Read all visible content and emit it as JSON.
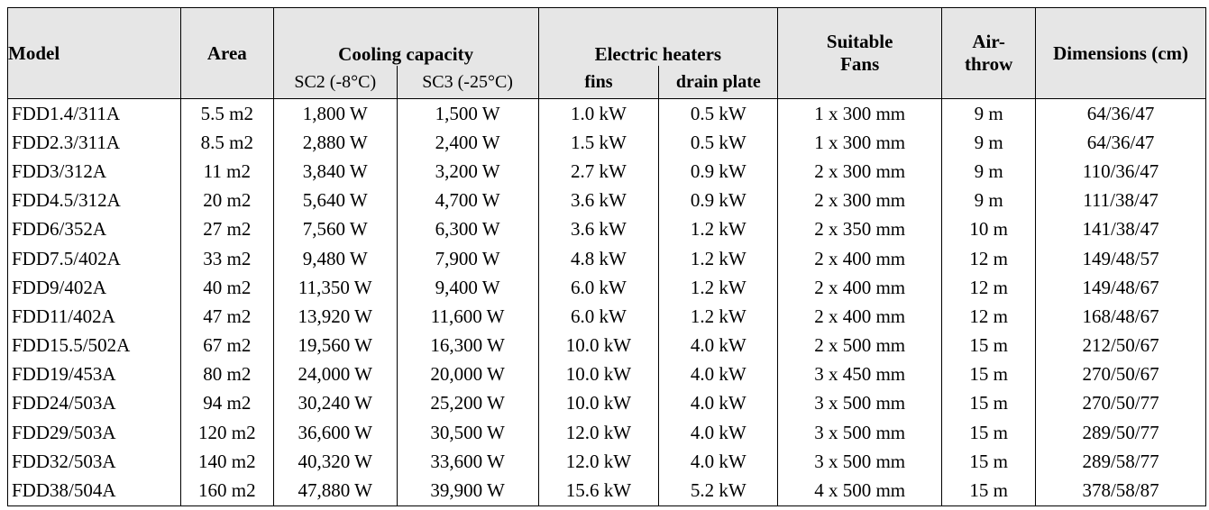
{
  "headers": {
    "model": "Model",
    "area": "Area",
    "cooling_capacity": "Cooling capacity",
    "sc2": "SC2 (-8°C)",
    "sc3": "SC3 (-25°C)",
    "electric_heaters": "Electric heaters",
    "fins": "fins",
    "drain_plate": "drain plate",
    "suitable_fans": "Suitable Fans",
    "air_throw": "Air-throw",
    "dimensions": "Dimensions (cm)"
  },
  "rows": [
    {
      "model": "FDD1.4/311A",
      "area": "5.5 m2",
      "sc2": "1,800 W",
      "sc3": "1,500 W",
      "fins": "1.0 kW",
      "drain": "0.5 kW",
      "fans": "1 x 300 mm",
      "air": "9 m",
      "dim": "64/36/47"
    },
    {
      "model": "FDD2.3/311A",
      "area": "8.5 m2",
      "sc2": "2,880 W",
      "sc3": "2,400 W",
      "fins": "1.5 kW",
      "drain": "0.5 kW",
      "fans": "1 x 300 mm",
      "air": "9 m",
      "dim": "64/36/47"
    },
    {
      "model": "FDD3/312A",
      "area": "11 m2",
      "sc2": "3,840 W",
      "sc3": "3,200 W",
      "fins": "2.7 kW",
      "drain": "0.9 kW",
      "fans": "2 x 300 mm",
      "air": "9 m",
      "dim": "110/36/47"
    },
    {
      "model": "FDD4.5/312A",
      "area": "20 m2",
      "sc2": "5,640 W",
      "sc3": "4,700 W",
      "fins": "3.6 kW",
      "drain": "0.9 kW",
      "fans": "2 x 300 mm",
      "air": "9 m",
      "dim": "111/38/47"
    },
    {
      "model": "FDD6/352A",
      "area": "27 m2",
      "sc2": "7,560 W",
      "sc3": "6,300 W",
      "fins": "3.6 kW",
      "drain": "1.2 kW",
      "fans": "2 x 350 mm",
      "air": "10 m",
      "dim": "141/38/47"
    },
    {
      "model": "FDD7.5/402A",
      "area": "33 m2",
      "sc2": "9,480 W",
      "sc3": "7,900 W",
      "fins": "4.8 kW",
      "drain": "1.2 kW",
      "fans": "2 x 400 mm",
      "air": "12 m",
      "dim": "149/48/57"
    },
    {
      "model": "FDD9/402A",
      "area": "40 m2",
      "sc2": "11,350 W",
      "sc3": "9,400 W",
      "fins": "6.0 kW",
      "drain": "1.2 kW",
      "fans": "2 x 400 mm",
      "air": "12 m",
      "dim": "149/48/67"
    },
    {
      "model": "FDD11/402A",
      "area": "47 m2",
      "sc2": "13,920 W",
      "sc3": "11,600 W",
      "fins": "6.0 kW",
      "drain": "1.2 kW",
      "fans": "2 x 400 mm",
      "air": "12 m",
      "dim": "168/48/67"
    },
    {
      "model": "FDD15.5/502A",
      "area": "67 m2",
      "sc2": "19,560 W",
      "sc3": "16,300 W",
      "fins": "10.0 kW",
      "drain": "4.0 kW",
      "fans": "2 x 500 mm",
      "air": "15 m",
      "dim": "212/50/67"
    },
    {
      "model": "FDD19/453A",
      "area": "80 m2",
      "sc2": "24,000 W",
      "sc3": "20,000 W",
      "fins": "10.0 kW",
      "drain": "4.0 kW",
      "fans": "3 x 450 mm",
      "air": "15 m",
      "dim": "270/50/67"
    },
    {
      "model": "FDD24/503A",
      "area": "94 m2",
      "sc2": "30,240 W",
      "sc3": "25,200 W",
      "fins": "10.0 kW",
      "drain": "4.0 kW",
      "fans": "3 x 500 mm",
      "air": "15 m",
      "dim": "270/50/77"
    },
    {
      "model": "FDD29/503A",
      "area": "120 m2",
      "sc2": "36,600 W",
      "sc3": "30,500 W",
      "fins": "12.0 kW",
      "drain": "4.0 kW",
      "fans": "3 x 500 mm",
      "air": "15 m",
      "dim": "289/50/77"
    },
    {
      "model": "FDD32/503A",
      "area": "140 m2",
      "sc2": "40,320 W",
      "sc3": "33,600 W",
      "fins": "12.0 kW",
      "drain": "4.0 kW",
      "fans": "3 x 500 mm",
      "air": "15 m",
      "dim": "289/58/77"
    },
    {
      "model": "FDD38/504A",
      "area": "160 m2",
      "sc2": "47,880 W",
      "sc3": "39,900 W",
      "fins": "15.6 kW",
      "drain": "5.2 kW",
      "fans": "4 x 500 mm",
      "air": "15 m",
      "dim": "378/58/87"
    }
  ]
}
